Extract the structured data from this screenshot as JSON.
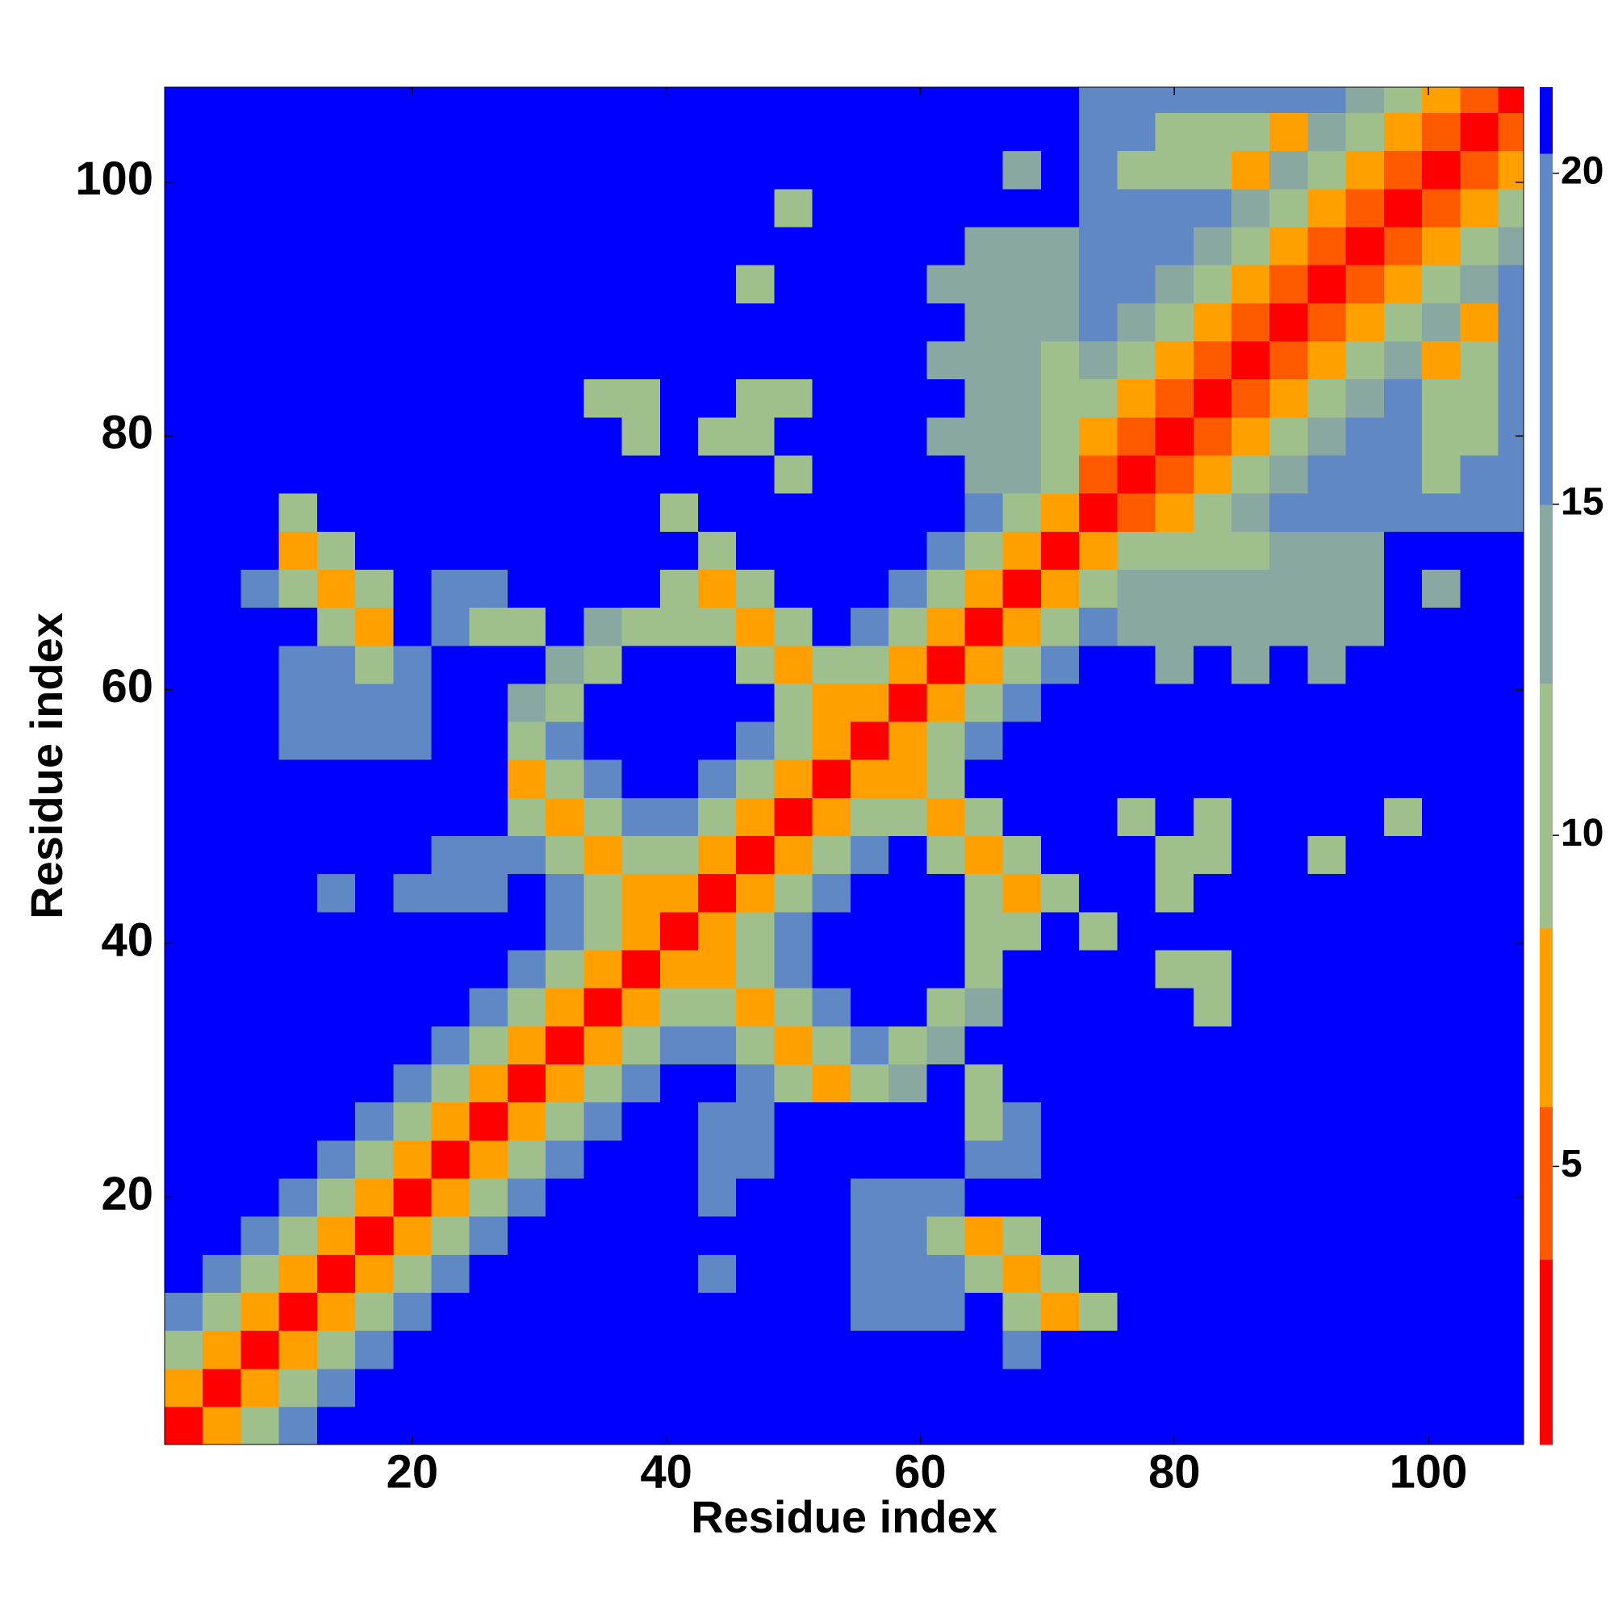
{
  "chart_data": {
    "type": "heatmap",
    "xlabel": "Residue index",
    "ylabel": "Residue index",
    "x": [
      2,
      5,
      8,
      11,
      14,
      17,
      20,
      23,
      26,
      29,
      32,
      35,
      38,
      41,
      44,
      47,
      50,
      53,
      56,
      59,
      62,
      65,
      68,
      71,
      74,
      77,
      80,
      83,
      86,
      89,
      92,
      95,
      98,
      101,
      104,
      107
    ],
    "y": [
      2,
      5,
      8,
      11,
      14,
      17,
      20,
      23,
      26,
      29,
      32,
      35,
      38,
      41,
      44,
      47,
      50,
      53,
      56,
      59,
      62,
      65,
      68,
      71,
      74,
      77,
      80,
      83,
      86,
      89,
      92,
      95,
      98,
      101,
      104,
      107
    ],
    "xlim": [
      0.5,
      107.5
    ],
    "ylim": [
      0.5,
      107.5
    ],
    "xticks": [
      20,
      40,
      60,
      80,
      100
    ],
    "yticks": [
      20,
      40,
      60,
      80,
      100
    ],
    "zlim": [
      0.8,
      21.3
    ],
    "zticks": [
      5,
      10,
      15,
      20
    ],
    "color_levels": [
      0.8,
      3.6,
      5.9,
      8.6,
      12.3,
      15,
      20.3,
      21.3
    ],
    "colors": [
      "#ff0000",
      "#ff5a00",
      "#ffa000",
      "#9fbf8c",
      "#8aa8a2",
      "#5f88c4",
      "#0000ff"
    ],
    "z": [
      [
        2,
        6,
        10,
        16,
        21,
        21,
        21,
        21,
        21,
        21,
        21,
        21,
        21,
        21,
        21,
        21,
        21,
        21,
        21,
        21,
        21,
        21,
        21,
        21,
        21,
        21,
        21,
        21,
        21,
        21,
        21,
        21,
        21,
        21,
        21,
        21
      ],
      [
        6,
        2,
        6,
        10,
        16,
        21,
        21,
        21,
        21,
        21,
        21,
        21,
        21,
        21,
        21,
        21,
        21,
        21,
        21,
        21,
        21,
        21,
        21,
        21,
        21,
        21,
        21,
        21,
        21,
        21,
        21,
        21,
        21,
        21,
        21,
        21
      ],
      [
        10,
        6,
        2,
        6,
        10,
        16,
        21,
        21,
        21,
        21,
        21,
        21,
        21,
        21,
        21,
        21,
        21,
        21,
        21,
        21,
        21,
        21,
        17,
        21,
        21,
        21,
        21,
        21,
        21,
        21,
        21,
        21,
        21,
        21,
        21,
        21
      ],
      [
        16,
        10,
        6,
        2,
        6,
        10,
        16,
        21,
        21,
        21,
        21,
        21,
        21,
        21,
        21,
        21,
        21,
        21,
        17,
        17,
        17,
        21,
        11,
        6,
        11,
        21,
        21,
        21,
        21,
        21,
        21,
        21,
        21,
        21,
        21,
        21
      ],
      [
        21,
        16,
        10,
        6,
        2,
        6,
        10,
        16,
        21,
        21,
        21,
        21,
        21,
        21,
        17,
        21,
        21,
        21,
        17,
        17,
        17,
        11,
        6,
        11,
        21,
        21,
        21,
        21,
        21,
        21,
        21,
        21,
        21,
        21,
        21,
        21
      ],
      [
        21,
        21,
        16,
        10,
        6,
        2,
        6,
        10,
        16,
        21,
        21,
        21,
        21,
        21,
        21,
        21,
        21,
        21,
        17,
        17,
        11,
        6,
        11,
        21,
        21,
        21,
        21,
        21,
        21,
        21,
        21,
        21,
        21,
        21,
        21,
        21
      ],
      [
        21,
        21,
        21,
        16,
        10,
        6,
        2,
        6,
        10,
        16,
        21,
        21,
        21,
        21,
        17,
        21,
        21,
        21,
        17,
        17,
        17,
        21,
        21,
        21,
        21,
        21,
        21,
        21,
        21,
        21,
        21,
        21,
        21,
        21,
        21,
        21
      ],
      [
        21,
        21,
        21,
        21,
        16,
        10,
        6,
        2,
        6,
        10,
        16,
        21,
        21,
        21,
        17,
        17,
        21,
        21,
        21,
        21,
        21,
        17,
        17,
        21,
        21,
        21,
        21,
        21,
        21,
        21,
        21,
        21,
        21,
        21,
        21,
        21
      ],
      [
        21,
        21,
        21,
        21,
        21,
        16,
        10,
        6,
        2,
        6,
        10,
        16,
        21,
        21,
        17,
        17,
        21,
        21,
        21,
        21,
        21,
        11,
        17,
        21,
        21,
        21,
        21,
        21,
        21,
        21,
        21,
        21,
        21,
        21,
        21,
        21
      ],
      [
        21,
        21,
        21,
        21,
        21,
        21,
        16,
        10,
        6,
        2,
        6,
        10,
        16,
        21,
        21,
        16,
        11,
        6,
        11,
        14,
        21,
        11,
        21,
        21,
        21,
        21,
        21,
        21,
        21,
        21,
        21,
        21,
        21,
        21,
        21,
        21
      ],
      [
        21,
        21,
        21,
        21,
        21,
        21,
        21,
        16,
        10,
        6,
        2,
        6,
        10,
        16,
        16,
        11,
        6,
        11,
        16,
        11,
        14,
        21,
        21,
        21,
        21,
        21,
        21,
        21,
        21,
        21,
        21,
        21,
        21,
        21,
        21,
        21
      ],
      [
        21,
        21,
        21,
        21,
        21,
        21,
        21,
        21,
        16,
        10,
        6,
        2,
        6,
        10,
        11,
        6,
        11,
        16,
        21,
        21,
        11,
        14,
        21,
        21,
        21,
        21,
        21,
        11,
        21,
        21,
        21,
        21,
        21,
        21,
        21,
        21
      ],
      [
        21,
        21,
        21,
        21,
        21,
        21,
        21,
        21,
        21,
        16,
        10,
        6,
        2,
        6,
        6,
        11,
        16,
        21,
        21,
        21,
        21,
        11,
        21,
        21,
        21,
        21,
        12,
        12,
        21,
        21,
        21,
        21,
        21,
        21,
        21,
        21
      ],
      [
        21,
        21,
        21,
        21,
        21,
        21,
        21,
        21,
        21,
        21,
        16,
        10,
        6,
        2,
        6,
        10,
        16,
        21,
        21,
        21,
        21,
        11,
        11,
        21,
        11,
        21,
        21,
        21,
        21,
        21,
        21,
        21,
        21,
        21,
        21,
        21
      ],
      [
        21,
        21,
        21,
        21,
        17,
        21,
        17,
        17,
        17,
        21,
        16,
        11,
        6,
        6,
        2,
        6,
        10,
        16,
        21,
        21,
        21,
        11,
        6,
        11,
        21,
        21,
        12,
        21,
        21,
        21,
        21,
        21,
        21,
        21,
        21,
        21
      ],
      [
        21,
        21,
        21,
        21,
        21,
        21,
        21,
        17,
        17,
        16,
        11,
        6,
        11,
        10,
        6,
        2,
        6,
        10,
        16,
        21,
        11,
        6,
        11,
        21,
        21,
        21,
        12,
        12,
        21,
        21,
        12,
        21,
        21,
        21,
        21,
        21
      ],
      [
        21,
        21,
        21,
        21,
        21,
        21,
        21,
        21,
        21,
        11,
        6,
        11,
        16,
        16,
        10,
        6,
        2,
        6,
        10,
        11,
        6,
        11,
        21,
        21,
        21,
        12,
        21,
        12,
        21,
        21,
        21,
        21,
        12,
        21,
        21,
        21
      ],
      [
        21,
        21,
        21,
        21,
        21,
        21,
        21,
        21,
        21,
        6,
        11,
        16,
        21,
        21,
        16,
        10,
        6,
        2,
        6,
        6,
        11,
        21,
        21,
        21,
        21,
        21,
        21,
        21,
        21,
        21,
        21,
        21,
        21,
        21,
        21,
        21
      ],
      [
        21,
        21,
        21,
        17,
        17,
        17,
        17,
        21,
        21,
        11,
        16,
        21,
        21,
        21,
        21,
        16,
        10,
        6,
        2,
        6,
        10,
        16,
        21,
        21,
        21,
        21,
        21,
        21,
        21,
        21,
        21,
        21,
        21,
        21,
        21,
        21
      ],
      [
        21,
        21,
        21,
        17,
        17,
        17,
        17,
        21,
        21,
        14,
        11,
        21,
        21,
        21,
        21,
        21,
        11,
        6,
        6,
        2,
        6,
        10,
        16,
        21,
        21,
        21,
        21,
        21,
        21,
        21,
        21,
        21,
        21,
        21,
        21,
        21
      ],
      [
        21,
        21,
        21,
        17,
        17,
        11,
        17,
        21,
        21,
        21,
        14,
        11,
        21,
        21,
        21,
        11,
        6,
        11,
        10,
        6,
        2,
        6,
        10,
        16,
        21,
        21,
        14,
        21,
        14,
        21,
        14,
        21,
        21,
        21,
        21,
        21
      ],
      [
        21,
        21,
        21,
        21,
        11,
        6,
        21,
        17,
        11,
        11,
        21,
        14,
        11,
        11,
        11,
        6,
        11,
        21,
        16,
        10,
        6,
        2,
        6,
        10,
        16,
        13,
        13,
        13,
        13,
        13,
        13,
        13,
        21,
        21,
        21,
        21
      ],
      [
        21,
        21,
        17,
        11,
        6,
        11,
        21,
        17,
        17,
        21,
        21,
        21,
        21,
        11,
        6,
        11,
        21,
        21,
        21,
        16,
        10,
        6,
        2,
        6,
        10,
        14,
        14,
        14,
        14,
        14,
        14,
        14,
        21,
        14,
        21,
        21
      ],
      [
        21,
        21,
        21,
        6,
        11,
        21,
        21,
        21,
        21,
        21,
        21,
        21,
        21,
        21,
        11,
        21,
        21,
        21,
        21,
        21,
        16,
        10,
        6,
        2,
        6,
        10,
        12,
        12,
        12,
        14,
        14,
        14,
        21,
        21,
        21,
        21
      ],
      [
        21,
        21,
        21,
        11,
        21,
        21,
        21,
        21,
        21,
        21,
        21,
        21,
        21,
        11,
        21,
        21,
        21,
        21,
        21,
        21,
        21,
        16,
        10,
        6,
        2,
        5,
        8,
        11,
        13,
        16,
        17,
        17,
        17,
        17,
        17,
        17
      ],
      [
        21,
        21,
        21,
        21,
        21,
        21,
        21,
        21,
        21,
        21,
        21,
        21,
        21,
        21,
        21,
        21,
        12,
        21,
        21,
        21,
        21,
        13,
        14,
        10,
        5,
        2,
        5,
        8,
        11,
        13,
        16,
        17,
        17,
        9,
        17,
        17
      ],
      [
        21,
        21,
        21,
        21,
        21,
        21,
        21,
        21,
        21,
        21,
        21,
        21,
        12,
        21,
        12,
        12,
        21,
        21,
        21,
        21,
        14,
        13,
        14,
        12,
        8,
        5,
        2,
        5,
        8,
        11,
        13,
        16,
        17,
        9,
        12,
        17
      ],
      [
        21,
        21,
        21,
        21,
        21,
        21,
        21,
        21,
        21,
        21,
        21,
        11,
        12,
        21,
        21,
        12,
        12,
        21,
        21,
        21,
        21,
        13,
        14,
        12,
        11,
        8,
        5,
        2,
        5,
        8,
        11,
        13,
        16,
        9,
        12,
        17
      ],
      [
        21,
        21,
        21,
        21,
        21,
        21,
        21,
        21,
        21,
        21,
        21,
        21,
        21,
        21,
        21,
        21,
        21,
        21,
        21,
        21,
        14,
        13,
        14,
        12,
        13,
        11,
        8,
        5,
        2,
        5,
        8,
        11,
        13,
        8,
        9,
        17
      ],
      [
        21,
        21,
        21,
        21,
        21,
        21,
        21,
        21,
        21,
        21,
        21,
        21,
        21,
        21,
        21,
        21,
        21,
        21,
        21,
        21,
        21,
        13,
        14,
        14,
        16,
        13,
        11,
        8,
        5,
        2,
        5,
        8,
        11,
        13,
        8,
        16
      ],
      [
        21,
        21,
        21,
        21,
        21,
        21,
        21,
        21,
        21,
        21,
        21,
        21,
        21,
        21,
        21,
        12,
        21,
        21,
        21,
        21,
        14,
        13,
        14,
        14,
        17,
        16,
        13,
        11,
        8,
        5,
        2,
        5,
        8,
        11,
        13,
        16
      ],
      [
        21,
        21,
        21,
        21,
        21,
        21,
        21,
        21,
        21,
        21,
        21,
        21,
        21,
        21,
        21,
        21,
        21,
        21,
        21,
        21,
        21,
        13,
        14,
        14,
        17,
        17,
        16,
        13,
        11,
        8,
        5,
        2,
        5,
        8,
        11,
        13
      ],
      [
        21,
        21,
        21,
        21,
        21,
        21,
        21,
        21,
        21,
        21,
        21,
        21,
        21,
        21,
        21,
        21,
        12,
        21,
        21,
        21,
        21,
        21,
        21,
        21,
        17,
        17,
        17,
        16,
        13,
        11,
        8,
        5,
        2,
        5,
        8,
        11
      ],
      [
        21,
        21,
        21,
        21,
        21,
        21,
        21,
        21,
        21,
        21,
        21,
        21,
        21,
        21,
        21,
        21,
        21,
        21,
        21,
        21,
        21,
        21,
        14,
        21,
        17,
        9,
        9,
        9,
        8,
        13,
        11,
        8,
        5,
        2,
        5,
        8
      ],
      [
        21,
        21,
        21,
        21,
        21,
        21,
        21,
        21,
        21,
        21,
        21,
        21,
        21,
        21,
        21,
        21,
        21,
        21,
        21,
        21,
        21,
        21,
        21,
        21,
        17,
        17,
        12,
        12,
        9,
        8,
        13,
        11,
        8,
        5,
        2,
        5
      ],
      [
        21,
        21,
        21,
        21,
        21,
        21,
        21,
        21,
        21,
        21,
        21,
        21,
        21,
        21,
        21,
        21,
        21,
        21,
        21,
        21,
        21,
        21,
        21,
        21,
        17,
        17,
        17,
        17,
        17,
        16,
        16,
        13,
        11,
        8,
        5,
        2
      ]
    ]
  }
}
